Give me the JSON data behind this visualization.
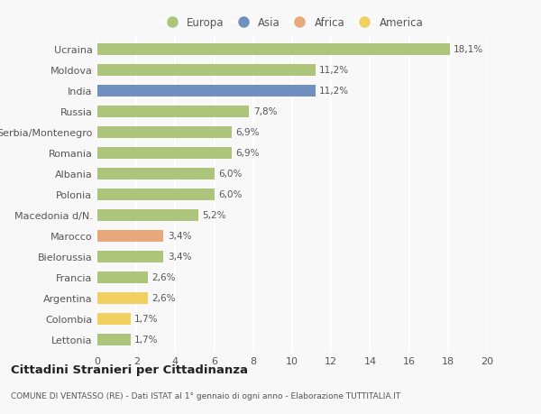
{
  "categories": [
    "Lettonia",
    "Colombia",
    "Argentina",
    "Francia",
    "Bielorussia",
    "Marocco",
    "Macedonia d/N.",
    "Polonia",
    "Albania",
    "Romania",
    "Serbia/Montenegro",
    "Russia",
    "India",
    "Moldova",
    "Ucraina"
  ],
  "values": [
    1.7,
    1.7,
    2.6,
    2.6,
    3.4,
    3.4,
    5.2,
    6.0,
    6.0,
    6.9,
    6.9,
    7.8,
    11.2,
    11.2,
    18.1
  ],
  "labels": [
    "1,7%",
    "1,7%",
    "2,6%",
    "2,6%",
    "3,4%",
    "3,4%",
    "5,2%",
    "6,0%",
    "6,0%",
    "6,9%",
    "6,9%",
    "7,8%",
    "11,2%",
    "11,2%",
    "18,1%"
  ],
  "continents": [
    "Europa",
    "America",
    "America",
    "Europa",
    "Europa",
    "Africa",
    "Europa",
    "Europa",
    "Europa",
    "Europa",
    "Europa",
    "Europa",
    "Asia",
    "Europa",
    "Europa"
  ],
  "colors": {
    "Europa": "#adc57a",
    "Asia": "#7090bf",
    "Africa": "#e8a87c",
    "America": "#f0d060"
  },
  "legend_order": [
    "Europa",
    "Asia",
    "Africa",
    "America"
  ],
  "title": "Cittadini Stranieri per Cittadinanza",
  "subtitle": "COMUNE DI VENTASSO (RE) - Dati ISTAT al 1° gennaio di ogni anno - Elaborazione TUTTITALIA.IT",
  "xlim": [
    0,
    20
  ],
  "xticks": [
    0,
    2,
    4,
    6,
    8,
    10,
    12,
    14,
    16,
    18,
    20
  ],
  "bg_color": "#f8f8f8",
  "grid_color": "#ffffff",
  "bar_height": 0.55
}
